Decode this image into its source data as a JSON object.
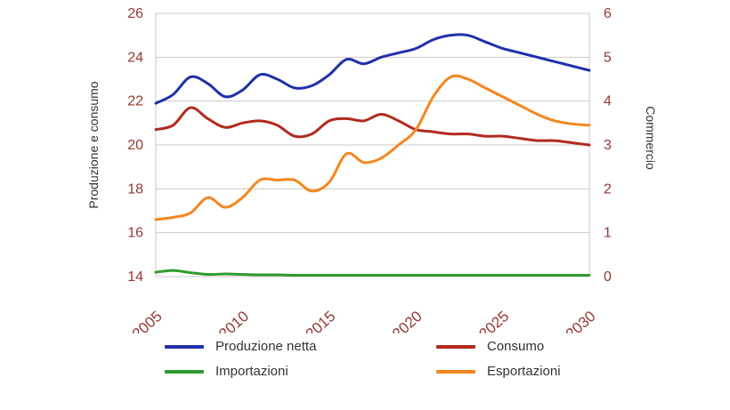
{
  "chart_data": {
    "type": "line",
    "title": "",
    "years": [
      2005,
      2006,
      2007,
      2008,
      2009,
      2010,
      2011,
      2012,
      2013,
      2014,
      2015,
      2016,
      2017,
      2018,
      2019,
      2020,
      2021,
      2022,
      2023,
      2024,
      2025,
      2026,
      2027,
      2028,
      2029,
      2030
    ],
    "x_range": [
      2005,
      2030
    ],
    "x_label_ticks": [
      2005,
      2010,
      2015,
      2020,
      2025,
      2030
    ],
    "left_axis": {
      "label": "Produzione e consumo",
      "range": [
        14,
        26
      ],
      "ticks": [
        14,
        16,
        18,
        20,
        22,
        24,
        26
      ]
    },
    "right_axis": {
      "label": "Commercio",
      "range": [
        0,
        6
      ],
      "ticks": [
        0,
        1,
        2,
        3,
        4,
        5,
        6
      ]
    },
    "grid": true,
    "legend_position": "bottom",
    "series": [
      {
        "name": "Produzione netta",
        "axis": "left",
        "color": "#2030A8",
        "values": [
          21.9,
          22.3,
          23.1,
          22.8,
          22.2,
          22.5,
          23.2,
          23.0,
          22.6,
          22.7,
          23.2,
          23.9,
          23.7,
          24.0,
          24.2,
          24.4,
          24.8,
          25.0,
          25.0,
          24.7,
          24.4,
          24.2,
          24.0,
          23.8,
          23.6,
          23.4
        ]
      },
      {
        "name": "Consumo",
        "axis": "left",
        "color": "#B22A1E",
        "values": [
          20.7,
          20.9,
          21.7,
          21.2,
          20.8,
          21.0,
          21.1,
          20.9,
          20.4,
          20.5,
          21.1,
          21.2,
          21.1,
          21.4,
          21.1,
          20.7,
          20.6,
          20.5,
          20.5,
          20.4,
          20.4,
          20.3,
          20.2,
          20.2,
          20.1,
          20.0
        ]
      },
      {
        "name": "Importazioni",
        "axis": "right",
        "color": "#2E9B2E",
        "values": [
          0.1,
          0.14,
          0.09,
          0.05,
          0.06,
          0.05,
          0.04,
          0.04,
          0.03,
          0.03,
          0.03,
          0.03,
          0.03,
          0.03,
          0.03,
          0.03,
          0.03,
          0.03,
          0.03,
          0.03,
          0.03,
          0.03,
          0.03,
          0.03,
          0.03,
          0.03
        ]
      },
      {
        "name": "Esportazioni",
        "axis": "right",
        "color": "#F5861F",
        "values": [
          1.3,
          1.35,
          1.45,
          1.8,
          1.58,
          1.8,
          2.2,
          2.2,
          2.2,
          1.95,
          2.15,
          2.8,
          2.6,
          2.7,
          3.0,
          3.35,
          4.1,
          4.55,
          4.5,
          4.3,
          4.1,
          3.9,
          3.7,
          3.55,
          3.48,
          3.45
        ]
      }
    ],
    "styles": {
      "tick_label_color": "#953735",
      "grid_color": "#c8c8c8",
      "axis_title_color": "#333333",
      "legend_text_color": "#333333",
      "background_color": "#ffffff"
    }
  }
}
